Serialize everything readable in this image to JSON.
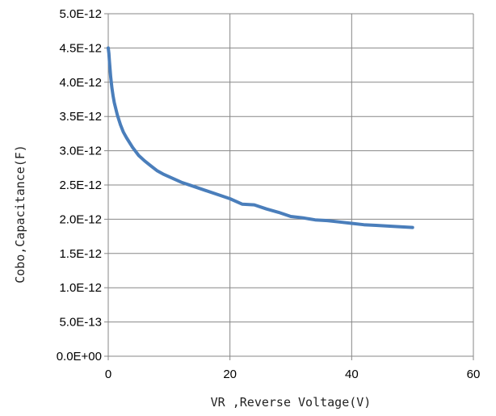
{
  "chart_data": {
    "type": "line",
    "title": "",
    "xlabel": "VR ,Reverse Voltage(V)",
    "ylabel": "Cobo,Capacitance(F)",
    "xlim": [
      0,
      60
    ],
    "ylim": [
      0,
      5e-12
    ],
    "grid": true,
    "colors": {
      "series": "#4A7EBB",
      "grid": "#878787",
      "axis": "#878787",
      "text": "#000000",
      "background": "#ffffff"
    },
    "x_ticks": [
      {
        "value": 0,
        "label": "0"
      },
      {
        "value": 20,
        "label": "20"
      },
      {
        "value": 40,
        "label": "40"
      },
      {
        "value": 60,
        "label": "60"
      }
    ],
    "y_ticks": [
      {
        "value": 0,
        "label": "0.0E+00"
      },
      {
        "value": 5e-13,
        "label": "5.0E-13"
      },
      {
        "value": 1e-12,
        "label": "1.0E-12"
      },
      {
        "value": 1.5e-12,
        "label": "1.5E-12"
      },
      {
        "value": 2e-12,
        "label": "2.0E-12"
      },
      {
        "value": 2.5e-12,
        "label": "2.5E-12"
      },
      {
        "value": 3e-12,
        "label": "3.0E-12"
      },
      {
        "value": 3.5e-12,
        "label": "3.5E-12"
      },
      {
        "value": 4e-12,
        "label": "4.0E-12"
      },
      {
        "value": 4.5e-12,
        "label": "4.5E-12"
      },
      {
        "value": 5e-12,
        "label": "5.0E-12"
      }
    ],
    "series": [
      {
        "x": [
          0,
          0.1,
          0.2,
          0.4,
          0.6,
          0.8,
          1.0,
          1.5,
          2.0,
          2.5,
          3.0,
          4.0,
          5.0,
          6.0,
          7.0,
          8.0,
          9.0,
          10.0,
          12.0,
          14.0,
          16.0,
          18.0,
          20.0,
          22.0,
          24.0,
          26.0,
          28.0,
          30.0,
          32.0,
          34.0,
          36.0,
          38.0,
          40.0,
          42.0,
          44.0,
          46.0,
          48.0,
          50.0
        ],
        "y": [
          4.5e-12,
          4.42e-12,
          4.3e-12,
          4.08e-12,
          3.92e-12,
          3.8e-12,
          3.7e-12,
          3.52e-12,
          3.38e-12,
          3.27e-12,
          3.19e-12,
          3.05e-12,
          2.93e-12,
          2.85e-12,
          2.78e-12,
          2.71e-12,
          2.66e-12,
          2.62e-12,
          2.54e-12,
          2.48e-12,
          2.42e-12,
          2.36e-12,
          2.3e-12,
          2.22e-12,
          2.21e-12,
          2.15e-12,
          2.1e-12,
          2.04e-12,
          2.02e-12,
          1.99e-12,
          1.98e-12,
          1.96e-12,
          1.94e-12,
          1.92e-12,
          1.91e-12,
          1.9e-12,
          1.89e-12,
          1.88e-12
        ]
      }
    ]
  }
}
